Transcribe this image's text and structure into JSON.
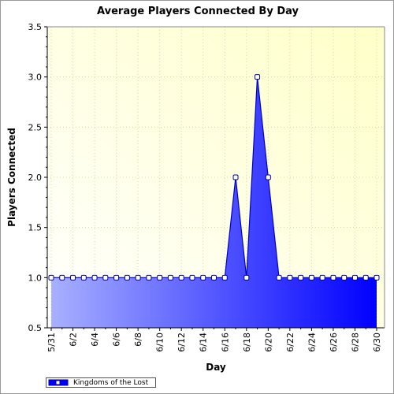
{
  "chart_data": {
    "type": "area",
    "title": "Average Players Connected By Day",
    "xlabel": "Day",
    "ylabel": "Players Connected",
    "x": [
      "5/31",
      "6/1",
      "6/2",
      "6/3",
      "6/4",
      "6/5",
      "6/6",
      "6/7",
      "6/8",
      "6/9",
      "6/10",
      "6/11",
      "6/12",
      "6/13",
      "6/14",
      "6/15",
      "6/16",
      "6/17",
      "6/18",
      "6/19",
      "6/20",
      "6/21",
      "6/22",
      "6/23",
      "6/24",
      "6/25",
      "6/26",
      "6/27",
      "6/28",
      "6/29",
      "6/30"
    ],
    "x_tick_labels": [
      "5/31",
      "6/2",
      "6/4",
      "6/6",
      "6/8",
      "6/10",
      "6/12",
      "6/14",
      "6/16",
      "6/18",
      "6/20",
      "6/22",
      "6/24",
      "6/26",
      "6/28",
      "6/30"
    ],
    "ylim": [
      0.5,
      3.5
    ],
    "y_ticks": [
      "0.5",
      "1.0",
      "1.5",
      "2.0",
      "2.5",
      "3.0",
      "3.5"
    ],
    "grid": true,
    "legend_position": "bottom-left",
    "series": [
      {
        "name": "Kingdoms of the Lost",
        "color": "#0000ff",
        "values": [
          1,
          1,
          1,
          1,
          1,
          1,
          1,
          1,
          1,
          1,
          1,
          1,
          1,
          1,
          1,
          1,
          1,
          2,
          1,
          3,
          2,
          1,
          1,
          1,
          1,
          1,
          1,
          1,
          1,
          1,
          1
        ]
      }
    ]
  },
  "colors": {
    "plot_bg_left": "#fffff6",
    "plot_bg_right": "#ffffd0",
    "area_left": "#a0a8ff",
    "area_right": "#0000ff",
    "line": "#0000cc"
  }
}
